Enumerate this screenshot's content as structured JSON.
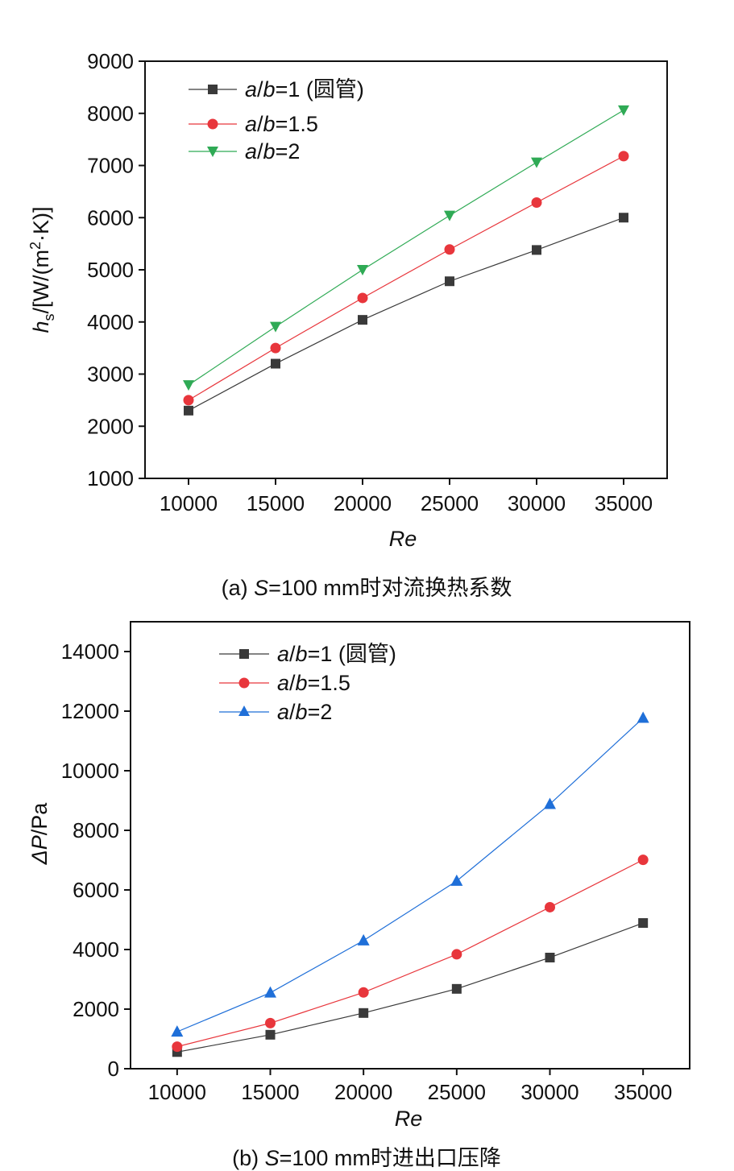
{
  "chart_data": [
    {
      "type": "line",
      "x": [
        10000,
        15000,
        20000,
        25000,
        30000,
        35000
      ],
      "xlabel": "Re",
      "ylabel_main": "h",
      "ylabel_sub": "s",
      "ylabel_unit_pre": "/[W/(m",
      "ylabel_sup": "2",
      "ylabel_unit_post": "·K)]",
      "xlim": [
        7500,
        37500
      ],
      "ylim": [
        1000,
        9000
      ],
      "xticks": [
        10000,
        15000,
        20000,
        25000,
        30000,
        35000
      ],
      "yticks": [
        1000,
        2000,
        3000,
        4000,
        5000,
        6000,
        7000,
        8000,
        9000
      ],
      "series": [
        {
          "name_var_a": "a",
          "name_slash": "/",
          "name_var_b": "b",
          "name_rest": "=1 (圆管)",
          "marker": "square",
          "color": "#3a3a3a",
          "values": [
            2300,
            3200,
            4040,
            4780,
            5380,
            6000
          ]
        },
        {
          "name_var_a": "a",
          "name_slash": "/",
          "name_var_b": "b",
          "name_rest": "=1.5",
          "marker": "circle",
          "color": "#e8363c",
          "values": [
            2500,
            3500,
            4460,
            5390,
            6290,
            7180
          ]
        },
        {
          "name_var_a": "a",
          "name_slash": "/",
          "name_var_b": "b",
          "name_rest": "=2",
          "marker": "triangle-down",
          "color": "#2faa55",
          "values": [
            2790,
            3910,
            5000,
            6040,
            7060,
            8060
          ]
        }
      ],
      "caption_pre": "(a) ",
      "caption_var": "S",
      "caption_post": "=100 mm时对流换热系数",
      "legend_position": "top-left"
    },
    {
      "type": "line",
      "x": [
        10000,
        15000,
        20000,
        25000,
        30000,
        35000
      ],
      "xlabel": "Re",
      "ylabel_main": "ΔP",
      "ylabel_unit_post": "/Pa",
      "xlim": [
        7500,
        37500
      ],
      "ylim": [
        0,
        15000
      ],
      "xticks": [
        10000,
        15000,
        20000,
        25000,
        30000,
        35000
      ],
      "yticks": [
        0,
        2000,
        4000,
        6000,
        8000,
        10000,
        12000,
        14000
      ],
      "series": [
        {
          "name_var_a": "a",
          "name_slash": "/",
          "name_var_b": "b",
          "name_rest": "=1 (圆管)",
          "marker": "square",
          "color": "#3a3a3a",
          "values": [
            560,
            1140,
            1870,
            2680,
            3730,
            4890
          ]
        },
        {
          "name_var_a": "a",
          "name_slash": "/",
          "name_var_b": "b",
          "name_rest": "=1.5",
          "marker": "circle",
          "color": "#e8363c",
          "values": [
            740,
            1530,
            2560,
            3840,
            5420,
            7010
          ]
        },
        {
          "name_var_a": "a",
          "name_slash": "/",
          "name_var_b": "b",
          "name_rest": "=2",
          "marker": "triangle-up",
          "color": "#1f6fd8",
          "values": [
            1240,
            2550,
            4300,
            6300,
            8880,
            11770
          ]
        }
      ],
      "caption_pre": "(b) ",
      "caption_var": "S",
      "caption_post": "=100 mm时进出口压降",
      "legend_position": "top-left"
    }
  ]
}
